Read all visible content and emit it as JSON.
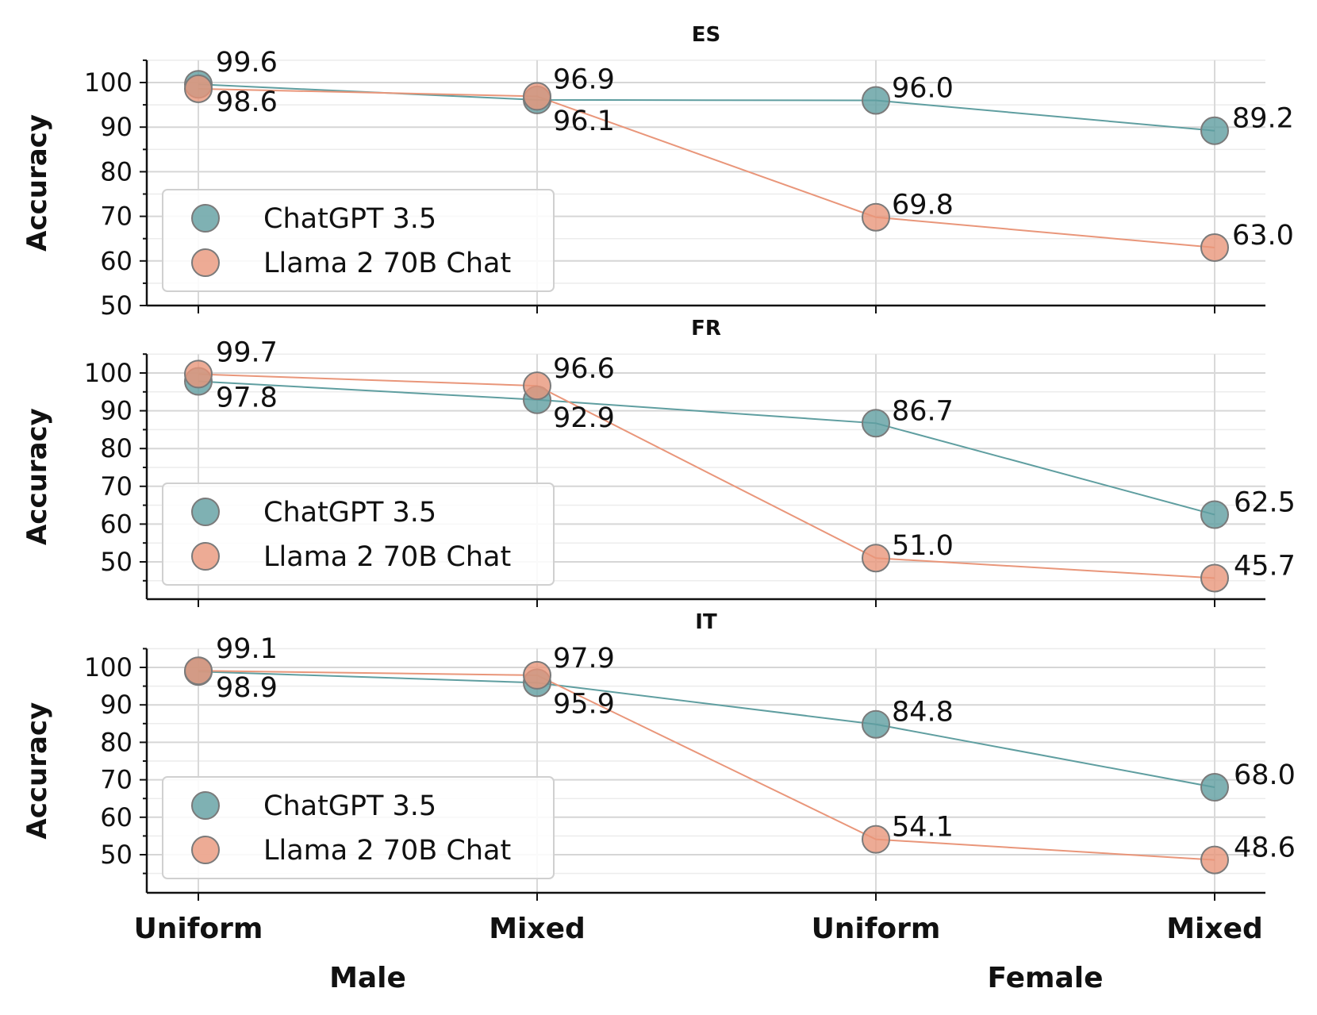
{
  "chart_data": [
    {
      "type": "line",
      "title": "ES",
      "ylabel": "Accuracy",
      "ylim": [
        50,
        105
      ],
      "yticks": [
        50,
        60,
        70,
        80,
        90,
        100
      ],
      "categories": [
        "Uniform",
        "Mixed",
        "Uniform",
        "Mixed"
      ],
      "series": [
        {
          "name": "ChatGPT 3.5",
          "values": [
            99.6,
            96.1,
            96.0,
            89.2
          ]
        },
        {
          "name": "Llama 2 70B Chat",
          "values": [
            98.6,
            96.9,
            69.8,
            63.0
          ]
        }
      ],
      "data_labels": [
        [
          "99.6",
          "96.1",
          "96.0",
          "89.2"
        ],
        [
          "98.6",
          "96.9",
          "69.8",
          "63.0"
        ]
      ],
      "legend": "lower-left",
      "grid": true
    },
    {
      "type": "line",
      "title": "FR",
      "ylabel": "Accuracy",
      "ylim": [
        45,
        105
      ],
      "yticks": [
        50,
        60,
        70,
        80,
        90,
        100
      ],
      "categories": [
        "Uniform",
        "Mixed",
        "Uniform",
        "Mixed"
      ],
      "series": [
        {
          "name": "ChatGPT 3.5",
          "values": [
            97.8,
            92.9,
            86.7,
            62.5
          ]
        },
        {
          "name": "Llama 2 70B Chat",
          "values": [
            99.7,
            96.6,
            51.0,
            45.7
          ]
        }
      ],
      "data_labels": [
        [
          "97.8",
          "92.9",
          "86.7",
          "62.5"
        ],
        [
          "99.7",
          "96.6",
          "51.0",
          "45.7"
        ]
      ],
      "legend": "lower-left",
      "grid": true
    },
    {
      "type": "line",
      "title": "IT",
      "ylabel": "Accuracy",
      "ylim": [
        45,
        105
      ],
      "yticks": [
        50,
        60,
        70,
        80,
        90,
        100
      ],
      "categories": [
        "Uniform",
        "Mixed",
        "Uniform",
        "Mixed"
      ],
      "series": [
        {
          "name": "ChatGPT 3.5",
          "values": [
            98.9,
            95.9,
            84.8,
            68.0
          ]
        },
        {
          "name": "Llama 2 70B Chat",
          "values": [
            99.1,
            97.9,
            54.1,
            48.6
          ]
        }
      ],
      "data_labels": [
        [
          "98.9",
          "95.9",
          "84.8",
          "68.0"
        ],
        [
          "99.1",
          "97.9",
          "54.1",
          "48.6"
        ]
      ],
      "legend": "lower-left",
      "grid": true
    }
  ],
  "x_groups": [
    "Male",
    "Female"
  ],
  "colors": {
    "ChatGPT 3.5": "#5f9ea0",
    "Llama 2 70B Chat": "#e9967a",
    "grid": "#d9d9d9",
    "axis": "#111111"
  }
}
